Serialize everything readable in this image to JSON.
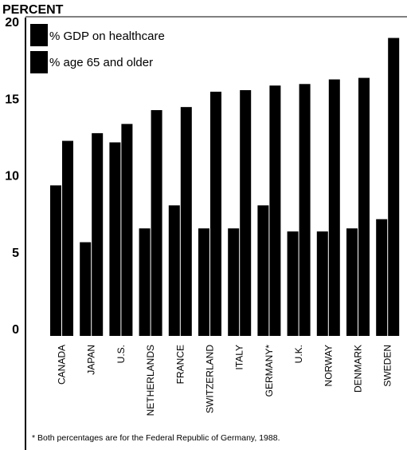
{
  "chart_data": {
    "type": "bar",
    "ylabel": "PERCENT",
    "ylim": [
      0,
      20
    ],
    "yticks": [
      0,
      5,
      10,
      15,
      20
    ],
    "grid": false,
    "legend_position": "top-left",
    "categories": [
      "CANADA",
      "JAPAN",
      "U.S.",
      "NETHERLANDS",
      "FRANCE",
      "SWITZERLAND",
      "ITALY",
      "GERMANY*",
      "U.K.",
      "NORWAY",
      "DENMARK",
      "SWEDEN"
    ],
    "series": [
      {
        "name": "% GDP on healthcare",
        "values": [
          9.8,
          6.1,
          12.6,
          7.0,
          8.5,
          7.0,
          7.0,
          8.5,
          6.8,
          6.8,
          7.0,
          7.6
        ]
      },
      {
        "name": "% age 65 and older",
        "values": [
          12.7,
          13.2,
          13.8,
          14.7,
          14.9,
          15.9,
          16.0,
          16.3,
          16.4,
          16.7,
          16.8,
          19.4
        ]
      }
    ],
    "footnote": "* Both percentages are for the Federal Republic of Germany, 1988.",
    "colors": {
      "bars": "#000000",
      "background": "#ffffff"
    }
  }
}
